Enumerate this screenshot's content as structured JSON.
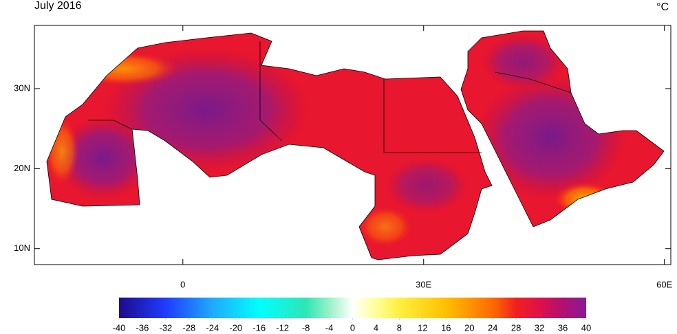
{
  "map": {
    "title": "July 2016",
    "units": "°C",
    "xlim": [
      -18.5,
      60.8
    ],
    "ylim": [
      8,
      37.9
    ],
    "xticks": [
      0,
      {
        "value": 30,
        "label": "30E"
      },
      {
        "value": 60,
        "label": "60E"
      }
    ],
    "yticks": [
      {
        "value": 10,
        "label": "10N"
      },
      {
        "value": 20,
        "label": "20N"
      },
      {
        "value": 30,
        "label": "30N"
      }
    ],
    "colorbar": {
      "lim": [
        -40,
        40
      ],
      "ticks": [
        -40,
        -36,
        -32,
        -28,
        -24,
        -20,
        -16,
        -12,
        -8,
        -4,
        0,
        4,
        8,
        12,
        16,
        20,
        24,
        28,
        32,
        36,
        40
      ]
    }
  }
}
